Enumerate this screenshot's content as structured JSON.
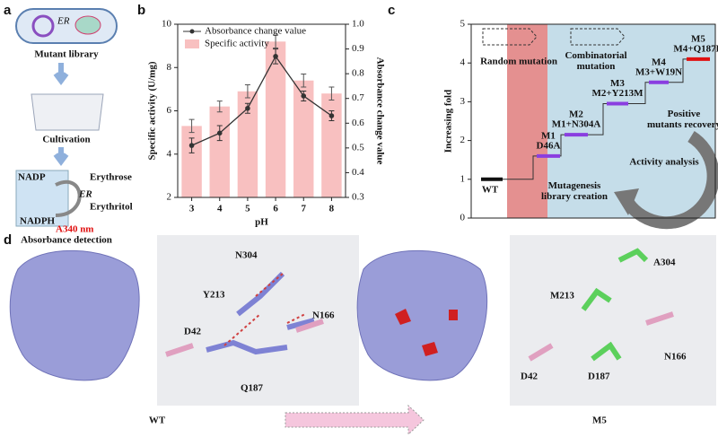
{
  "panel_labels": [
    "a",
    "b",
    "c",
    "d"
  ],
  "panel_a": {
    "plasmid": "ER",
    "steps": [
      "Mutant library",
      "Cultivation",
      "Absorbance detection"
    ],
    "reaction": {
      "cofactor_in": "NADP",
      "substrate": "Erythrose",
      "enzyme": "ER",
      "product": "Erythritol",
      "cofactor_out": "NADPH",
      "wavelength": "A340 nm"
    }
  },
  "chart_data": [
    {
      "type": "bar_line",
      "x_label": "pH",
      "y_label": "Specific activity (U/mg)",
      "y2_label": "Absorbance change value",
      "categories": [
        "3",
        "4",
        "5",
        "6",
        "7",
        "8"
      ],
      "series": [
        {
          "name": "Absorbance change value",
          "type": "line",
          "axis": "y2",
          "color": "#333333",
          "values": [
            0.51,
            0.56,
            0.66,
            0.87,
            0.71,
            0.63
          ],
          "errors": [
            0.03,
            0.03,
            0.02,
            0.03,
            0.02,
            0.02
          ]
        },
        {
          "name": "Specific activity",
          "type": "bar",
          "color": "#f8c0c0",
          "values": [
            5.3,
            6.2,
            6.9,
            9.2,
            7.4,
            6.8
          ],
          "errors": [
            0.3,
            0.25,
            0.3,
            0.3,
            0.3,
            0.3
          ]
        }
      ],
      "ylim": [
        2,
        10
      ],
      "yticks": [
        2,
        4,
        6,
        8,
        10
      ],
      "y2lim": [
        0.3,
        1.0
      ],
      "y2ticks": [
        0.3,
        0.4,
        0.5,
        0.6,
        0.7,
        0.8,
        0.9,
        {
          "value": 1.0,
          "label": "1.0"
        }
      ]
    },
    {
      "type": "step",
      "y_label": "Increasing fold",
      "categories": [
        "WT",
        "M1",
        "M2",
        "M3",
        "M4",
        "M5"
      ],
      "mutations": [
        null,
        "D46A",
        "M1+N304A",
        "M2+Y213M",
        "M3+W19N",
        "M4+Q187D"
      ],
      "values": [
        1,
        1.6,
        2.15,
        2.95,
        3.5,
        4.1
      ],
      "colors": [
        "#111111",
        "#8a3ee0",
        "#8a3ee0",
        "#8a3ee0",
        "#8a3ee0",
        "#e01010"
      ],
      "ylim": [
        0,
        5
      ],
      "yticks": [
        0,
        1,
        2,
        3,
        4,
        5
      ],
      "annotations": [
        "Random mutation",
        "Combinatorial mutation",
        "Positive mutants recovery",
        "Activity analysis",
        "Mutagenesis library creation"
      ]
    }
  ],
  "panel_d": {
    "wt_residues": [
      "N304",
      "Y213",
      "N166",
      "D42",
      "Q187"
    ],
    "m5_residues": [
      "A304",
      "M213",
      "N166",
      "D42",
      "D187"
    ],
    "captions": [
      "WT",
      "M5"
    ]
  }
}
